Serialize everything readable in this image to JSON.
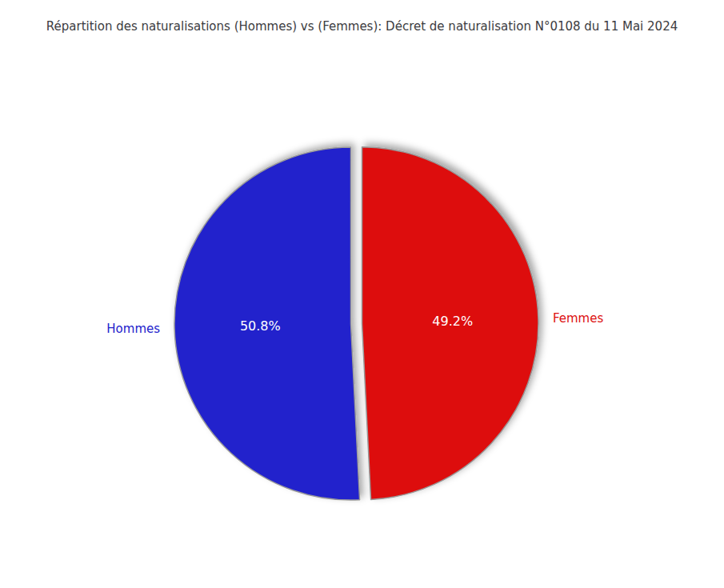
{
  "chart_data": {
    "type": "pie",
    "title": "Répartition des naturalisations (Hommes) vs (Femmes): Décret de naturalisation N°0108 du 11 Mai 2024",
    "categories": [
      "Femmes",
      "Hommes"
    ],
    "values": [
      49.2,
      50.8
    ],
    "value_labels": [
      "49.2%",
      "50.8%"
    ],
    "colors": [
      "#DD1111",
      "#2222CC"
    ],
    "data_labels": true
  }
}
